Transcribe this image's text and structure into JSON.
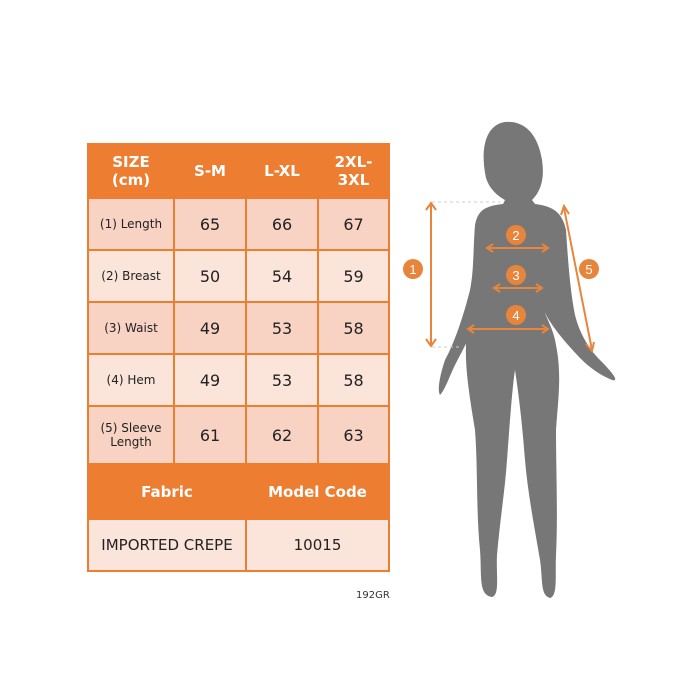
{
  "table": {
    "headers": [
      "SIZE\n(cm)",
      "S-M",
      "L-XL",
      "2XL-\n3XL"
    ],
    "rows": [
      {
        "label": "(1) Length",
        "values": [
          "65",
          "66",
          "67"
        ]
      },
      {
        "label": "(2) Breast",
        "values": [
          "50",
          "54",
          "59"
        ]
      },
      {
        "label": "(3) Waist",
        "values": [
          "49",
          "53",
          "58"
        ]
      },
      {
        "label": "(4) Hem",
        "values": [
          "49",
          "53",
          "58"
        ]
      },
      {
        "label": "(5) Sleeve Length",
        "values": [
          "61",
          "62",
          "63"
        ]
      }
    ],
    "fabric_label": "Fabric",
    "model_code_label": "Model Code",
    "fabric_value": "IMPORTED CREPE",
    "model_code_value": "10015"
  },
  "product_code": "192GR",
  "figure": {
    "markers": [
      "1",
      "2",
      "3",
      "4",
      "5"
    ]
  },
  "colors": {
    "accent": "#ed7d31",
    "cell_dark": "#f8d3c4",
    "cell_light": "#fbe4da",
    "silhouette": "#777777"
  }
}
